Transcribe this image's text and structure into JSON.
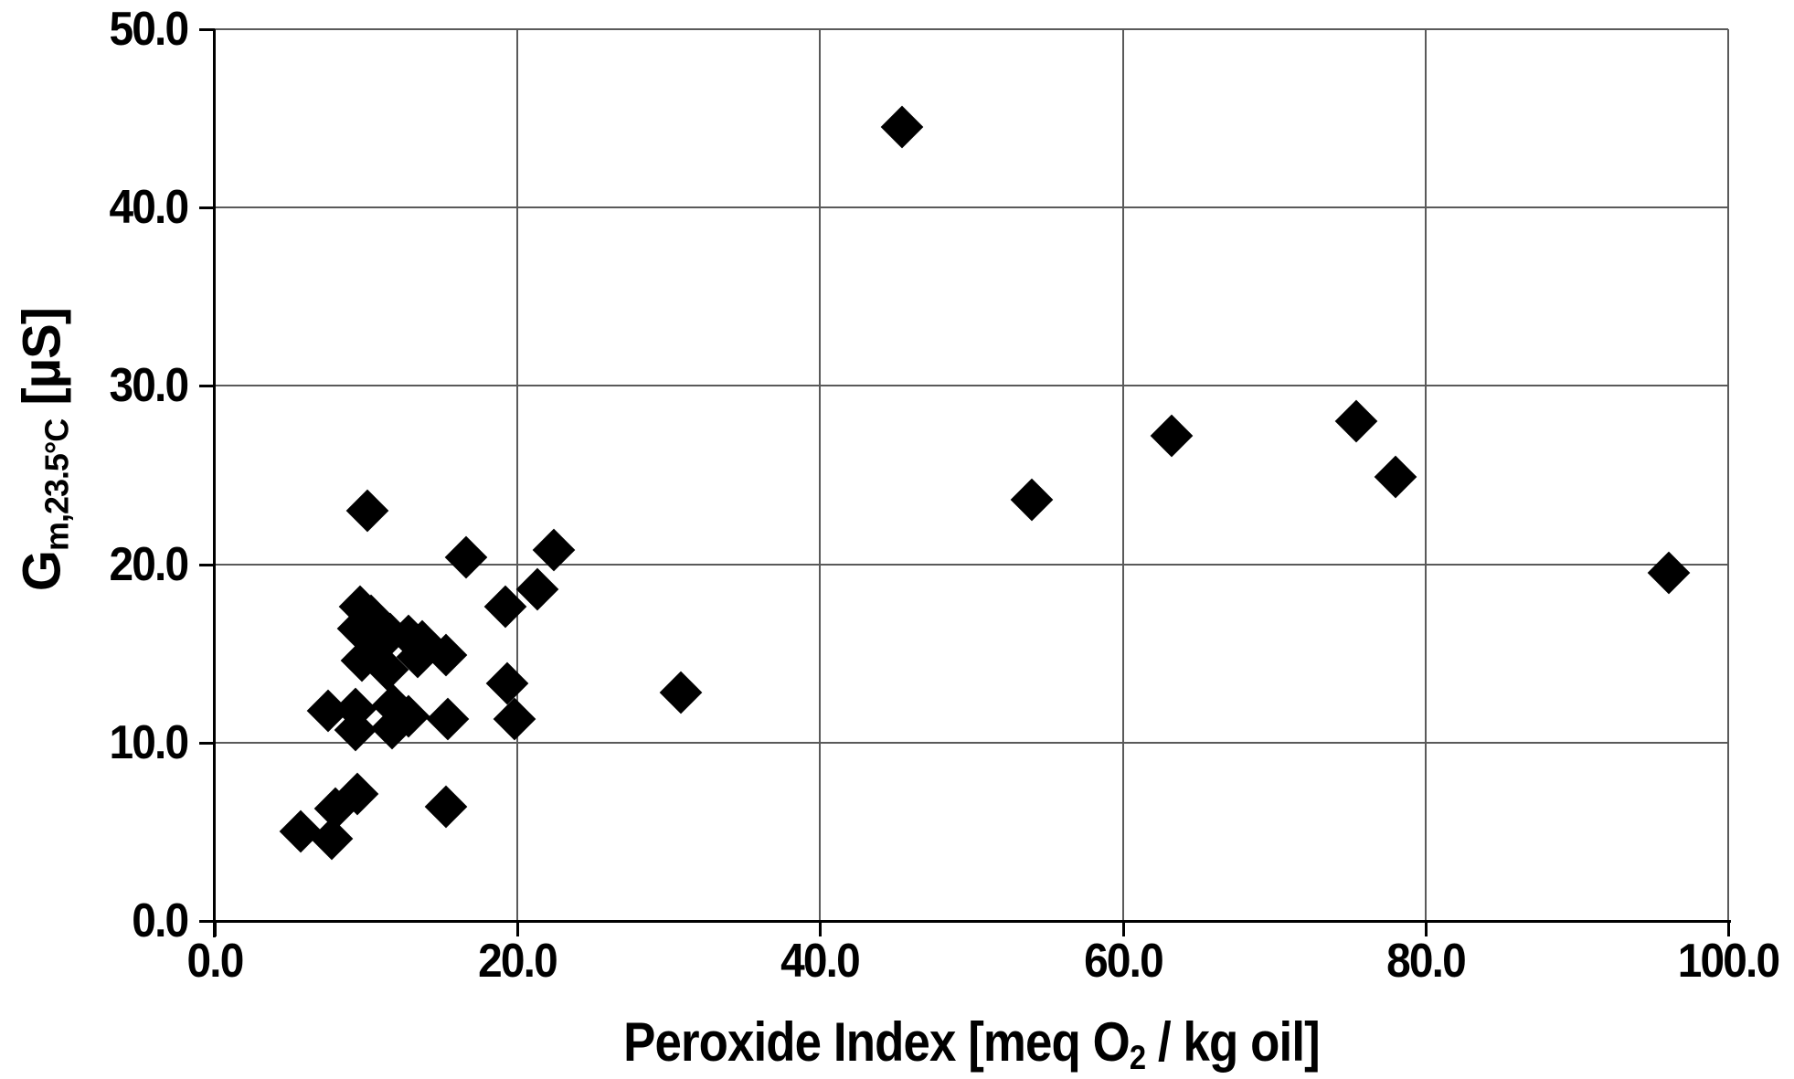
{
  "chart_data": {
    "type": "scatter",
    "title": "",
    "xlabel": "Peroxide Index [meq O2 / kg oil]",
    "ylabel": "Gm,23.5°C [µS]",
    "xlabel_parts": {
      "pre": "Peroxide Index [meq O",
      "sub": "2",
      "post": " / kg oil]"
    },
    "ylabel_parts": {
      "pre": "G",
      "sub": "m,23.5°C",
      "post": " [µS]"
    },
    "xlim": [
      0.0,
      100.0
    ],
    "ylim": [
      0.0,
      50.0
    ],
    "x_ticks": [
      0,
      20,
      40,
      60,
      80,
      100
    ],
    "y_ticks": [
      0,
      10,
      20,
      30,
      40,
      50
    ],
    "x_tick_labels": [
      "0.0",
      "20.0",
      "40.0",
      "60.0",
      "80.0",
      "100.0"
    ],
    "y_tick_labels": [
      "0.0",
      "10.0",
      "20.0",
      "30.0",
      "40.0",
      "50.0"
    ],
    "grid": true,
    "legend": false,
    "marker": "diamond",
    "marker_color": "#000000",
    "background_color": "#ffffff",
    "gridline_color": "#5a5a5a",
    "points": [
      [
        45.4,
        44.5
      ],
      [
        75.4,
        28.0
      ],
      [
        63.2,
        27.2
      ],
      [
        78.0,
        24.9
      ],
      [
        54.0,
        23.6
      ],
      [
        96.1,
        19.5
      ],
      [
        10.1,
        23.0
      ],
      [
        22.4,
        20.8
      ],
      [
        16.6,
        20.4
      ],
      [
        21.3,
        18.6
      ],
      [
        19.2,
        17.6
      ],
      [
        9.6,
        17.6
      ],
      [
        10.3,
        17.1
      ],
      [
        9.5,
        16.4
      ],
      [
        11.6,
        16.1
      ],
      [
        12.8,
        16.0
      ],
      [
        13.7,
        15.7
      ],
      [
        10.7,
        15.3
      ],
      [
        15.3,
        14.9
      ],
      [
        13.4,
        14.8
      ],
      [
        9.7,
        14.6
      ],
      [
        11.4,
        14.1
      ],
      [
        19.3,
        13.3
      ],
      [
        30.8,
        12.8
      ],
      [
        11.8,
        12.1
      ],
      [
        9.3,
        11.9
      ],
      [
        7.5,
        11.8
      ],
      [
        12.8,
        11.5
      ],
      [
        15.4,
        11.3
      ],
      [
        19.8,
        11.3
      ],
      [
        11.7,
        10.8
      ],
      [
        9.3,
        10.7
      ],
      [
        9.4,
        7.1
      ],
      [
        15.3,
        6.4
      ],
      [
        8.0,
        6.3
      ],
      [
        5.7,
        5.0
      ],
      [
        7.7,
        4.6
      ]
    ]
  }
}
